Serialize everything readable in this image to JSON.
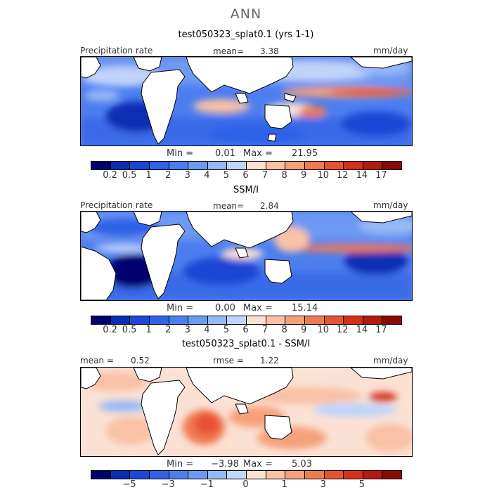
{
  "figure": {
    "title": "ANN"
  },
  "palette": {
    "main": [
      "#00006e",
      "#0a2db4",
      "#1a47d6",
      "#2f62e8",
      "#4d7ef0",
      "#6d99f3",
      "#97b8f6",
      "#c1d4fa",
      "#fbe1d3",
      "#f9c1a5",
      "#f5a07a",
      "#ef7a52",
      "#e65330",
      "#d4301a",
      "#b31b10",
      "#8a0a06"
    ],
    "diff": [
      "#00006e",
      "#0a2db4",
      "#1a47d6",
      "#2f62e8",
      "#4d7ef0",
      "#6d99f3",
      "#97b8f6",
      "#c1d4fa",
      "#fbe1d3",
      "#f9c1a5",
      "#f5a07a",
      "#ef7a52",
      "#e65330",
      "#d4301a",
      "#b31b10",
      "#8a0a06"
    ]
  },
  "panels": [
    {
      "subtitle": "test050323_splat0.1 (yrs 1-1)",
      "left_label": "Precipitation rate",
      "mean_label": "mean=",
      "mean_value": "3.38",
      "units": "mm/day",
      "min_label": "Min =",
      "min_value": "0.01",
      "max_label": "Max =",
      "max_value": "21.95",
      "colorbar_labels": [
        "0.2",
        "0.5",
        "1",
        "2",
        "3",
        "4",
        "5",
        "6",
        "7",
        "8",
        "9",
        "10",
        "12",
        "14",
        "17"
      ]
    },
    {
      "subtitle": "SSM/I",
      "left_label": "Precipitation rate",
      "mean_label": "mean=",
      "mean_value": "2.84",
      "units": "mm/day",
      "min_label": "Min =",
      "min_value": "0.00",
      "max_label": "Max =",
      "max_value": "15.14",
      "colorbar_labels": [
        "0.2",
        "0.5",
        "1",
        "2",
        "3",
        "4",
        "5",
        "6",
        "7",
        "8",
        "9",
        "10",
        "12",
        "14",
        "17"
      ]
    },
    {
      "subtitle": "test050323_splat0.1 - SSM/I",
      "left_label": "mean =",
      "mean_value": "0.52",
      "rmse_label": "rmse =",
      "rmse_value": "1.22",
      "units": "mm/day",
      "min_label": "Min =",
      "min_value": "−3.98",
      "max_label": "Max =",
      "max_value": "5.03",
      "colorbar_labels": [
        "−5",
        "−3",
        "−1",
        "0",
        "1",
        "3",
        "5"
      ]
    }
  ]
}
